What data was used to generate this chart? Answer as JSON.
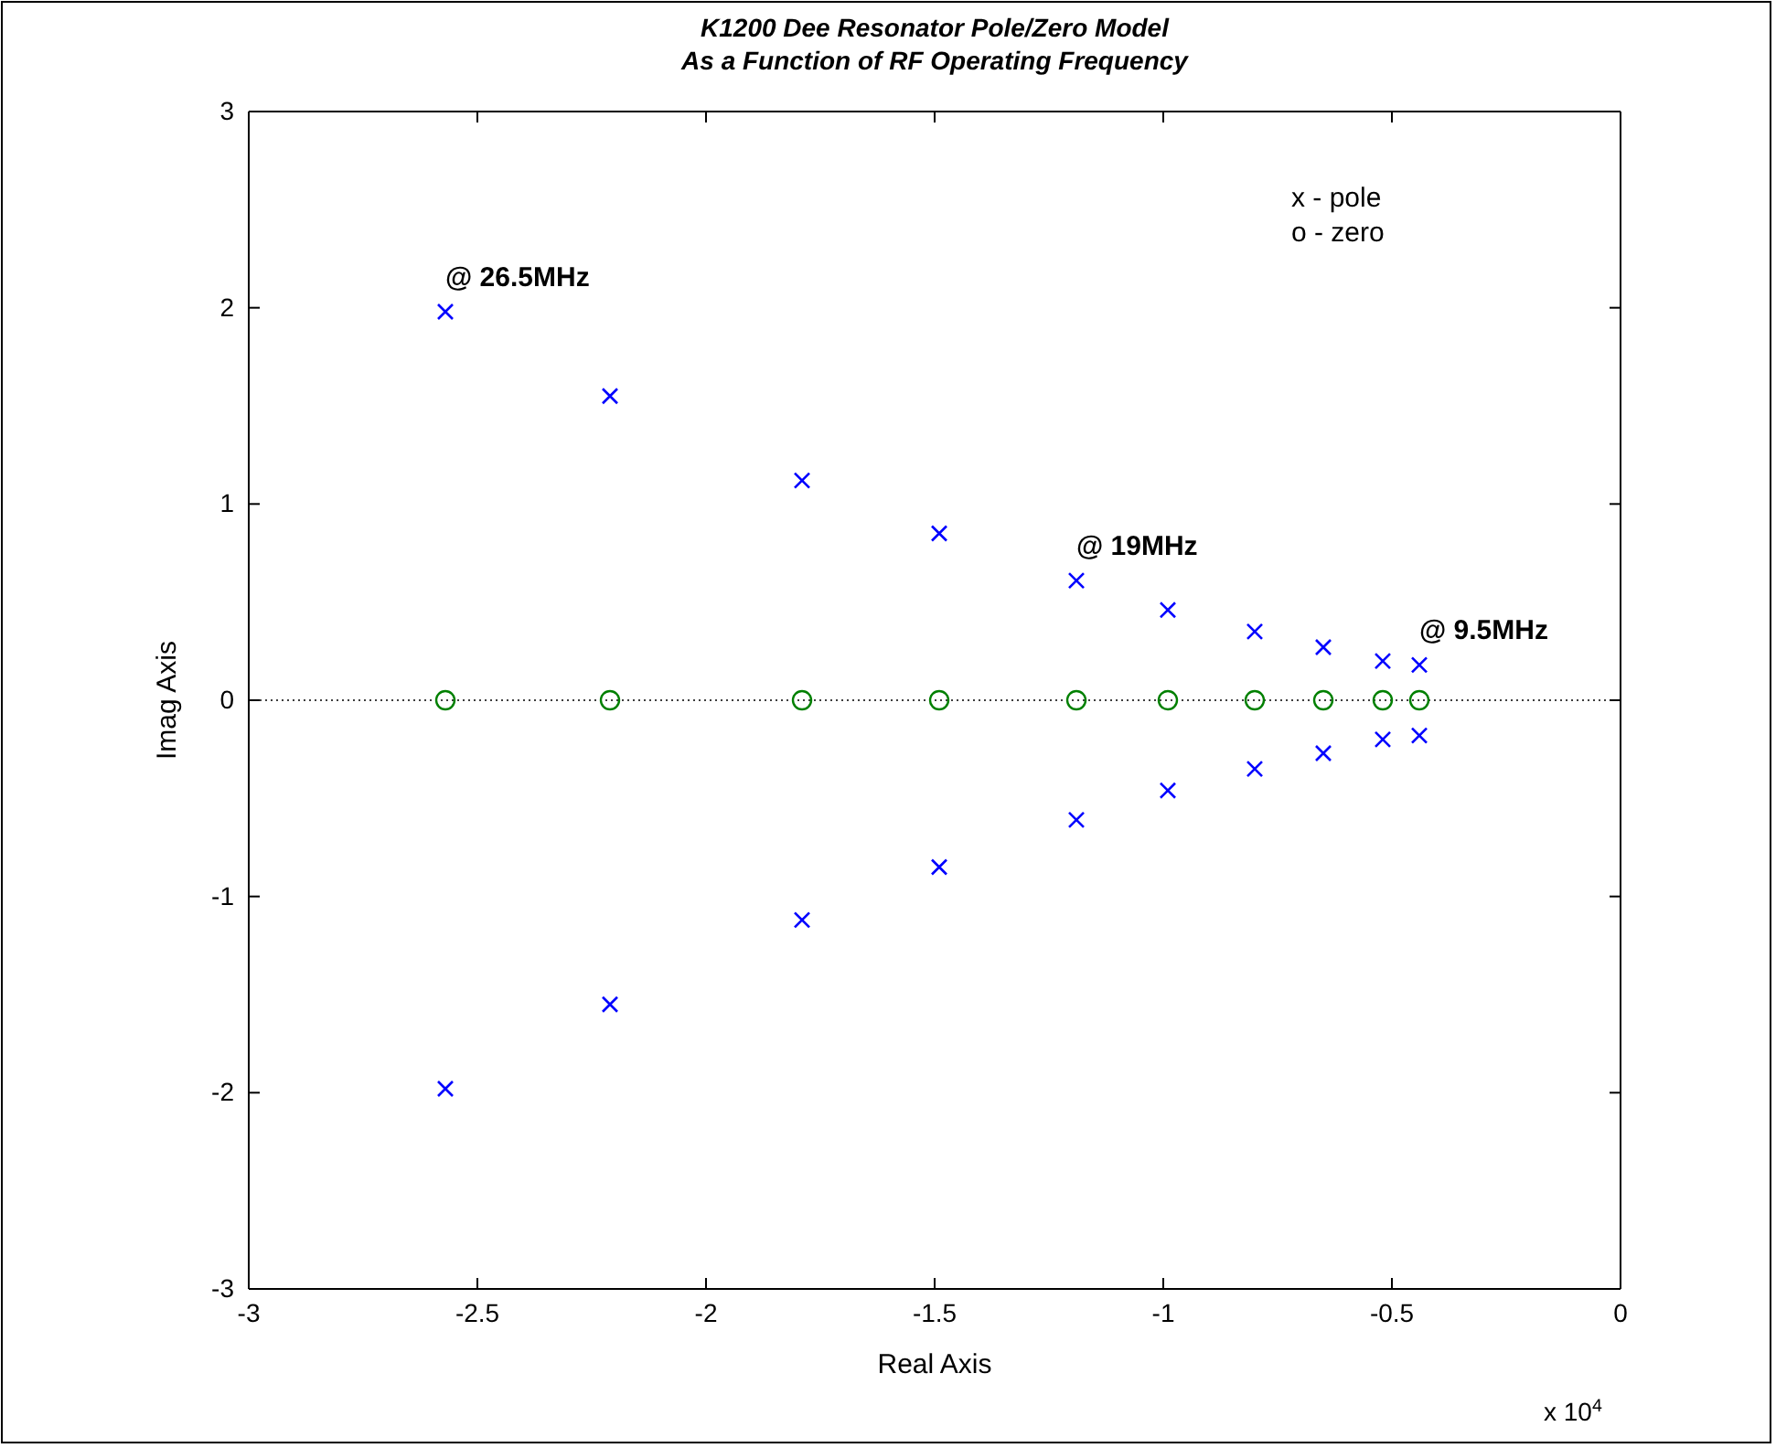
{
  "chart_data": {
    "type": "scatter",
    "title": "K1200 Dee Resonator Pole/Zero Model\nAs a Function of RF Operating Frequency",
    "xlabel": "Real Axis",
    "ylabel": "Imag Axis",
    "xlim": [
      -3,
      0
    ],
    "xticks": [
      -3,
      -2.5,
      -2,
      -1.5,
      -1,
      -0.5,
      0
    ],
    "ylim": [
      -3,
      3
    ],
    "yticks": [
      -3,
      -2,
      -1,
      0,
      1,
      2,
      3
    ],
    "grid": false,
    "series": [
      {
        "color": "#0000ff",
        "marker": "cross",
        "x": [
          -2.57,
          -2.21,
          -1.79,
          -1.49,
          -1.19,
          -0.99,
          -0.8,
          -0.65,
          -0.52,
          -0.44,
          -2.57,
          -2.21,
          -1.79,
          -1.49,
          -1.19,
          -0.99,
          -0.8,
          -0.65,
          -0.52,
          -0.44
        ],
        "values": [
          1.98,
          1.55,
          1.12,
          0.85,
          0.61,
          0.46,
          0.35,
          0.27,
          0.2,
          0.18,
          -1.98,
          -1.55,
          -1.12,
          -0.85,
          -0.61,
          -0.46,
          -0.35,
          -0.27,
          -0.2,
          -0.18
        ]
      },
      {
        "color": "#008000",
        "marker": "circle",
        "x": [
          -2.57,
          -2.21,
          -1.79,
          -1.49,
          -1.19,
          -0.99,
          -0.8,
          -0.65,
          -0.52,
          -0.44
        ],
        "values": [
          0,
          0,
          0,
          0,
          0,
          0,
          0,
          0,
          0,
          0
        ]
      }
    ],
    "ref_lines": [
      {
        "axis": "y",
        "value": 0,
        "color": "#000000",
        "line_style": "dotted"
      }
    ],
    "annotations": [
      {
        "text": "@ 26.5MHz",
        "x": -2.57,
        "y": 1.98
      },
      {
        "text": "@ 19MHz",
        "x": -1.19,
        "y": 0.61
      },
      {
        "text": "@ 9.5MHz",
        "x": -0.44,
        "y": 0.18
      },
      "x - pole",
      "o - zero",
      "x 10$^{4}$"
    ]
  }
}
